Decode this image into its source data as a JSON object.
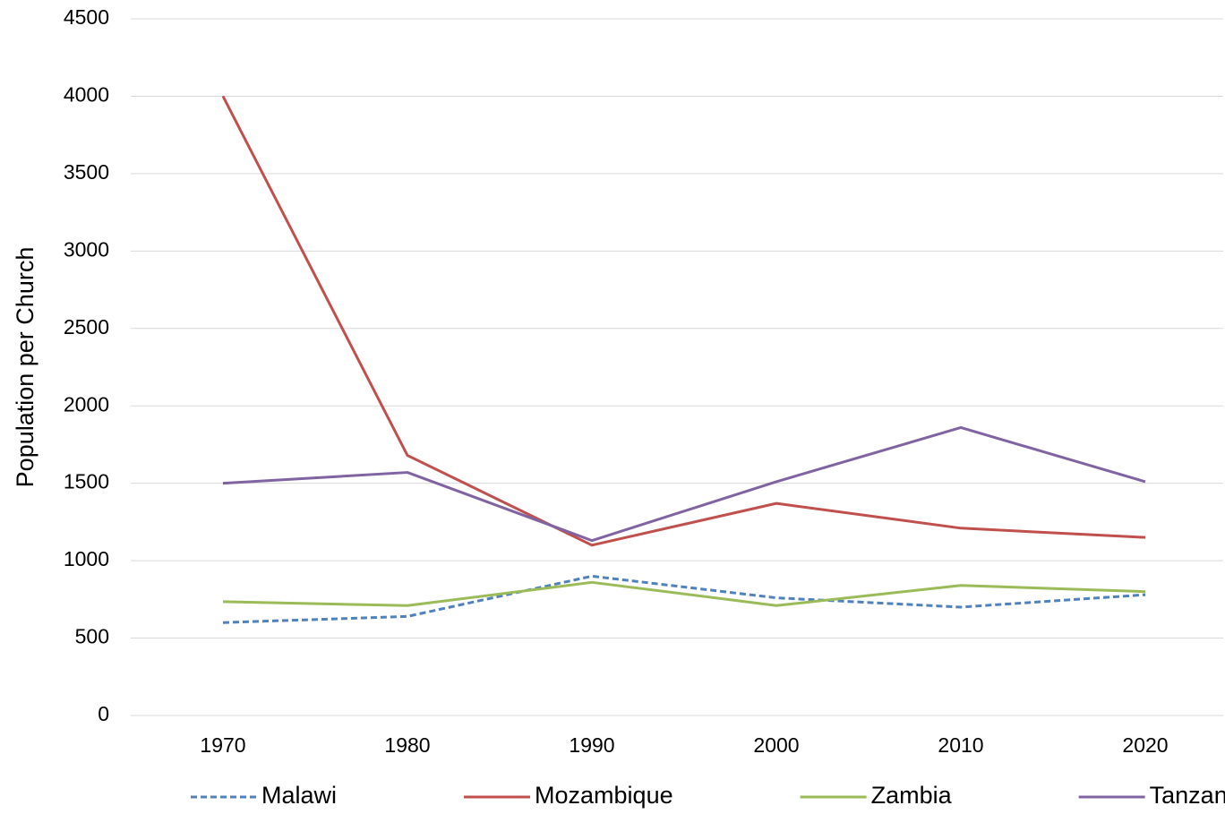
{
  "chart_data": {
    "type": "line",
    "y_label": "Population per Church",
    "categories": [
      "1970",
      "1980",
      "1990",
      "2000",
      "2010",
      "2020"
    ],
    "series": [
      {
        "name": "Malawi",
        "color": "#4f81bd",
        "dashed": true,
        "values": [
          600,
          640,
          900,
          760,
          700,
          780
        ]
      },
      {
        "name": "Mozambique",
        "color": "#c0504d",
        "values": [
          4000,
          1680,
          1100,
          1370,
          1210,
          1150
        ]
      },
      {
        "name": "Zambia",
        "color": "#9bbb59",
        "values": [
          735,
          710,
          860,
          710,
          840,
          800
        ]
      },
      {
        "name": "Tanzania",
        "color": "#8064a2",
        "values": [
          1500,
          1570,
          1130,
          1510,
          1860,
          1510
        ]
      }
    ],
    "ylim": [
      0,
      4500
    ],
    "yticks": [
      0,
      500,
      1000,
      1500,
      2000,
      2500,
      3000,
      3500,
      4000,
      4500
    ],
    "grid": true,
    "legend": "bottom"
  }
}
